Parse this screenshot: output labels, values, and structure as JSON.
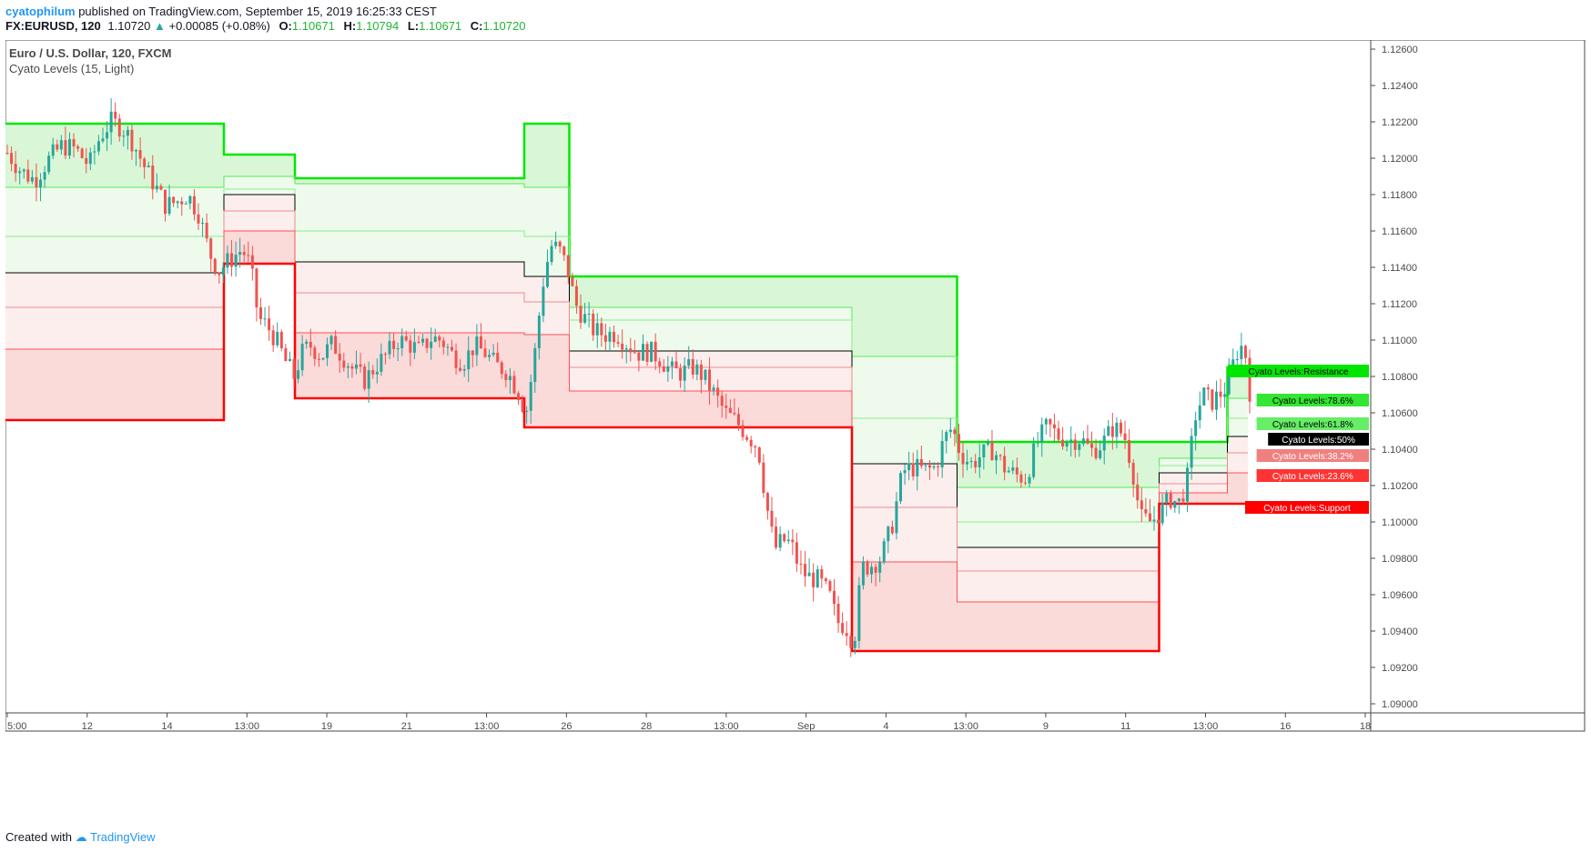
{
  "header": {
    "author": "cyatophilum",
    "published_text": "published on TradingView.com, September 15, 2019 16:25:33 CEST",
    "symbol": "FX:EURUSD, 120",
    "last_price": "1.10720",
    "change_arrow": "▲",
    "change": "+0.00085 (+0.08%)",
    "o_label": "O:",
    "o_value": "1.10671",
    "h_label": "H:",
    "h_value": "1.10794",
    "l_label": "L:",
    "l_value": "1.10671",
    "c_label": "C:",
    "c_value": "1.10720"
  },
  "legend": {
    "title": "Euro / U.S. Dollar, 120, FXCM",
    "indicator": "Cyato Levels (15, Light)"
  },
  "footer": {
    "created_with": "Created with",
    "brand": "TradingView"
  },
  "colors": {
    "resistance": "#00e600",
    "support": "#ff0000",
    "mid": "#000000",
    "candle_up": "#26a69a",
    "candle_down": "#ef5350",
    "green_fill": "#dff7dd",
    "red_fill": "#fbdcdc"
  },
  "chart_data": {
    "type": "candlestick",
    "title": "Euro / U.S. Dollar, 120, FXCM",
    "ylim": [
      1.0895,
      1.1265
    ],
    "y_ticks": [
      "1.09000",
      "1.09200",
      "1.09400",
      "1.09600",
      "1.09800",
      "1.10000",
      "1.10200",
      "1.10400",
      "1.10600",
      "1.10800",
      "1.11000",
      "1.11200",
      "1.11400",
      "1.11600",
      "1.11800",
      "1.12000",
      "1.12200",
      "1.12400",
      "1.12600"
    ],
    "x_ticks": [
      "5:00",
      "12",
      "14",
      "13:00",
      "19",
      "21",
      "13:00",
      "26",
      "28",
      "13:00",
      "Sep",
      "4",
      "13:00",
      "9",
      "11",
      "13:00",
      "16",
      "18"
    ],
    "levels": {
      "segments": [
        {
          "x_start": 0.0,
          "x_end": 0.16,
          "resistance": 1.1219,
          "r786": 1.1184,
          "r618": 1.1157,
          "mid": 1.1137,
          "r382": 1.1118,
          "r236": 1.1095,
          "support": 1.1056
        },
        {
          "x_start": 0.16,
          "x_end": 0.212,
          "resistance": 1.1202,
          "r786": 1.119,
          "r618": 1.1183,
          "mid": 1.118,
          "r382": 1.1171,
          "r236": 1.116,
          "support": 1.1142
        },
        {
          "x_start": 0.212,
          "x_end": 0.38,
          "resistance": 1.1189,
          "r786": 1.1186,
          "r618": 1.116,
          "mid": 1.1143,
          "r382": 1.1126,
          "r236": 1.1104,
          "support": 1.1068
        },
        {
          "x_start": 0.38,
          "x_end": 0.413,
          "resistance": 1.1219,
          "r786": 1.1184,
          "r618": 1.1157,
          "mid": 1.1135,
          "r382": 1.1121,
          "r236": 1.1103,
          "support": 1.1052
        },
        {
          "x_start": 0.413,
          "x_end": 0.62,
          "resistance": 1.1135,
          "r786": 1.1118,
          "r618": 1.1111,
          "mid": 1.1094,
          "r382": 1.1085,
          "r236": 1.1072,
          "support": 1.1052
        },
        {
          "x_start": 0.62,
          "x_end": 0.697,
          "resistance": 1.1135,
          "r786": 1.1091,
          "r618": 1.1057,
          "mid": 1.1032,
          "r382": 1.1008,
          "r236": 1.0978,
          "support": 1.0929
        },
        {
          "x_start": 0.697,
          "x_end": 0.845,
          "resistance": 1.1044,
          "r786": 1.1019,
          "r618": 1.1,
          "mid": 1.0986,
          "r382": 1.0973,
          "r236": 1.0956,
          "support": 1.0929
        },
        {
          "x_start": 0.845,
          "x_end": 0.895,
          "resistance": 1.1044,
          "r786": 1.1035,
          "r618": 1.1031,
          "mid": 1.1027,
          "r382": 1.1021,
          "r236": 1.1016,
          "support": 1.101
        },
        {
          "x_start": 0.895,
          "x_end": 0.91,
          "resistance": 1.1085,
          "r786": 1.1068,
          "r618": 1.1057,
          "mid": 1.1047,
          "r382": 1.1038,
          "r236": 1.1027,
          "support": 1.101
        }
      ],
      "labels": [
        {
          "name": "Cyato Levels:Resistance",
          "value": 1.1085,
          "color": "#00e600",
          "text_color": "#000000"
        },
        {
          "name": "Cyato Levels:78.6%",
          "value": 1.1069,
          "color": "#33e633",
          "text_color": "#000000"
        },
        {
          "name": "Cyato Levels:61.8%",
          "value": 1.1056,
          "color": "#66ee66",
          "text_color": "#000000"
        },
        {
          "name": "Cyato Levels:50%",
          "value": 1.1047,
          "color": "#000000",
          "text_color": "#ffffff"
        },
        {
          "name": "Cyato Levels:38.2%",
          "value": 1.1039,
          "color": "#f08080",
          "text_color": "#ffffff"
        },
        {
          "name": "Cyato Levels:23.6%",
          "value": 1.1027,
          "color": "#ff3333",
          "text_color": "#ffffff"
        },
        {
          "name": "Cyato Levels:Support",
          "value": 1.101,
          "color": "#ff0000",
          "text_color": "#ffffff"
        }
      ]
    },
    "candles_close_path": [
      [
        0.0,
        1.1203
      ],
      [
        0.01,
        1.1193
      ],
      [
        0.02,
        1.1188
      ],
      [
        0.03,
        1.1199
      ],
      [
        0.04,
        1.1207
      ],
      [
        0.05,
        1.1205
      ],
      [
        0.06,
        1.1196
      ],
      [
        0.068,
        1.1212
      ],
      [
        0.076,
        1.122
      ],
      [
        0.084,
        1.1217
      ],
      [
        0.092,
        1.1209
      ],
      [
        0.1,
        1.1196
      ],
      [
        0.108,
        1.1185
      ],
      [
        0.116,
        1.1174
      ],
      [
        0.124,
        1.1176
      ],
      [
        0.132,
        1.118
      ],
      [
        0.14,
        1.117
      ],
      [
        0.148,
        1.1148
      ],
      [
        0.155,
        1.1138
      ],
      [
        0.16,
        1.1142
      ],
      [
        0.166,
        1.1146
      ],
      [
        0.172,
        1.115
      ],
      [
        0.178,
        1.1141
      ],
      [
        0.184,
        1.1112
      ],
      [
        0.19,
        1.1108
      ],
      [
        0.197,
        1.11
      ],
      [
        0.204,
        1.1088
      ],
      [
        0.21,
        1.108
      ],
      [
        0.216,
        1.1093
      ],
      [
        0.222,
        1.1097
      ],
      [
        0.23,
        1.1091
      ],
      [
        0.238,
        1.1098
      ],
      [
        0.246,
        1.1091
      ],
      [
        0.254,
        1.1083
      ],
      [
        0.262,
        1.1078
      ],
      [
        0.27,
        1.1086
      ],
      [
        0.278,
        1.1092
      ],
      [
        0.286,
        1.11
      ],
      [
        0.294,
        1.1098
      ],
      [
        0.302,
        1.1094
      ],
      [
        0.31,
        1.1101
      ],
      [
        0.318,
        1.11
      ],
      [
        0.326,
        1.1092
      ],
      [
        0.334,
        1.1088
      ],
      [
        0.342,
        1.1097
      ],
      [
        0.35,
        1.1093
      ],
      [
        0.358,
        1.1086
      ],
      [
        0.366,
        1.1083
      ],
      [
        0.374,
        1.1072
      ],
      [
        0.38,
        1.106
      ],
      [
        0.386,
        1.109
      ],
      [
        0.392,
        1.113
      ],
      [
        0.398,
        1.1152
      ],
      [
        0.404,
        1.115
      ],
      [
        0.41,
        1.114
      ],
      [
        0.416,
        1.112
      ],
      [
        0.422,
        1.1113
      ],
      [
        0.43,
        1.1105
      ],
      [
        0.438,
        1.1103
      ],
      [
        0.446,
        1.1104
      ],
      [
        0.454,
        1.1098
      ],
      [
        0.462,
        1.1093
      ],
      [
        0.47,
        1.1094
      ],
      [
        0.478,
        1.109
      ],
      [
        0.486,
        1.1083
      ],
      [
        0.494,
        1.1082
      ],
      [
        0.502,
        1.1085
      ],
      [
        0.51,
        1.108
      ],
      [
        0.518,
        1.107
      ],
      [
        0.526,
        1.106
      ],
      [
        0.534,
        1.1055
      ],
      [
        0.542,
        1.1048
      ],
      [
        0.55,
        1.1041
      ],
      [
        0.556,
        1.101
      ],
      [
        0.562,
        1.0985
      ],
      [
        0.568,
        1.099
      ],
      [
        0.574,
        1.0988
      ],
      [
        0.58,
        1.0975
      ],
      [
        0.586,
        1.097
      ],
      [
        0.594,
        1.0968
      ],
      [
        0.602,
        1.096
      ],
      [
        0.608,
        1.0945
      ],
      [
        0.614,
        1.0943
      ],
      [
        0.62,
        1.0933
      ],
      [
        0.626,
        1.0975
      ],
      [
        0.632,
        1.0976
      ],
      [
        0.64,
        1.098
      ],
      [
        0.648,
        1.0998
      ],
      [
        0.656,
        1.1028
      ],
      [
        0.664,
        1.103
      ],
      [
        0.672,
        1.1028
      ],
      [
        0.68,
        1.103
      ],
      [
        0.686,
        1.1045
      ],
      [
        0.692,
        1.1052
      ],
      [
        0.698,
        1.1038
      ],
      [
        0.706,
        1.1032
      ],
      [
        0.714,
        1.1037
      ],
      [
        0.722,
        1.104
      ],
      [
        0.73,
        1.103
      ],
      [
        0.738,
        1.1026
      ],
      [
        0.746,
        1.1024
      ],
      [
        0.754,
        1.1043
      ],
      [
        0.762,
        1.1053
      ],
      [
        0.77,
        1.1047
      ],
      [
        0.778,
        1.1045
      ],
      [
        0.786,
        1.1046
      ],
      [
        0.794,
        1.1039
      ],
      [
        0.802,
        1.1043
      ],
      [
        0.81,
        1.1052
      ],
      [
        0.818,
        1.1048
      ],
      [
        0.824,
        1.103
      ],
      [
        0.83,
        1.1002
      ],
      [
        0.838,
        1.1
      ],
      [
        0.846,
        1.1007
      ],
      [
        0.852,
        1.1013
      ],
      [
        0.858,
        1.101
      ],
      [
        0.864,
        1.1022
      ],
      [
        0.87,
        1.1058
      ],
      [
        0.876,
        1.107
      ],
      [
        0.882,
        1.1066
      ],
      [
        0.888,
        1.107
      ],
      [
        0.894,
        1.1075
      ],
      [
        0.9,
        1.1093
      ],
      [
        0.906,
        1.1098
      ],
      [
        0.91,
        1.1072
      ]
    ]
  }
}
